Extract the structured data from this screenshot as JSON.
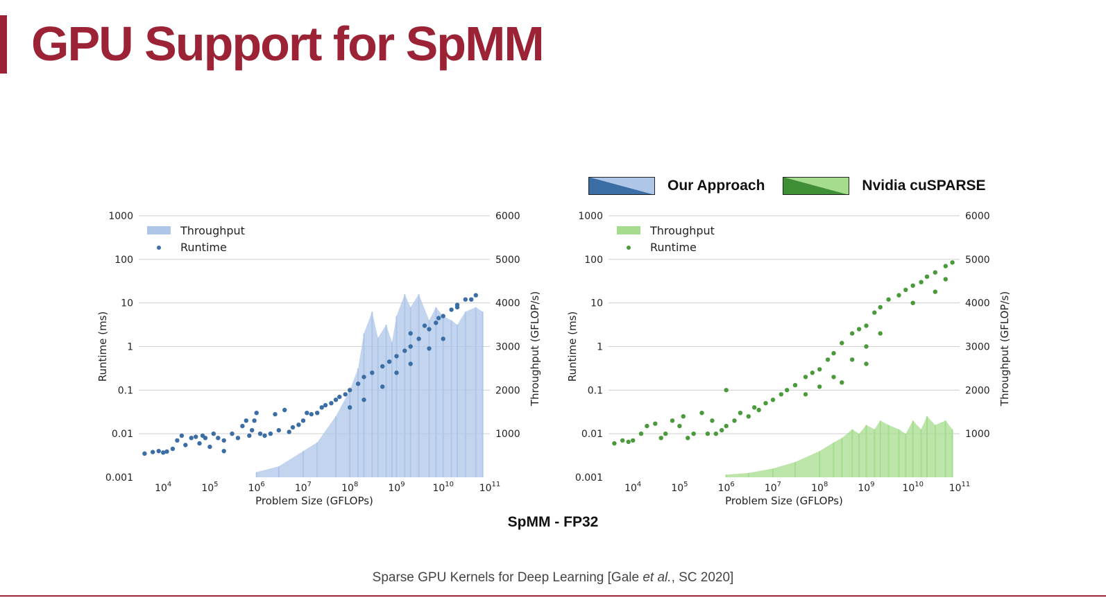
{
  "slide": {
    "title": "GPU Support for SpMM",
    "caption": "SpMM - FP32",
    "citation_pre": "Sparse GPU Kernels for Deep Learning [Gale ",
    "citation_italic": "et al.",
    "citation_post": ", SC 2020]"
  },
  "top_legend": [
    {
      "label": "Our Approach",
      "dark": "#3a6ea5",
      "light": "#aec6e8"
    },
    {
      "label": "Nvidia cuSPARSE",
      "dark": "#3f8f37",
      "light": "#a6dc8e"
    }
  ],
  "chart_data": [
    {
      "type": "scatter",
      "title": "",
      "xlabel": "Problem Size (GFLOPs)",
      "ylabel": "Runtime (ms)",
      "y2label": "Throughput (GFLOP/s)",
      "x_scale": "log",
      "y_scale": "log",
      "xlim": [
        3000.0,
        100000000000.0
      ],
      "ylim": [
        0.001,
        1000
      ],
      "y2lim": [
        0,
        6000
      ],
      "x_ticks": [
        "10",
        "10",
        "10",
        "10",
        "10",
        "10",
        "10",
        "10"
      ],
      "x_tick_exponents": [
        "4",
        "5",
        "6",
        "7",
        "8",
        "9",
        "10",
        "11"
      ],
      "y_ticks": [
        "0.001",
        "0.01",
        "0.1",
        "1",
        "10",
        "100",
        "1000"
      ],
      "y2_ticks": [
        "1000",
        "2000",
        "3000",
        "4000",
        "5000",
        "6000"
      ],
      "grid": true,
      "legend_position": "top-left",
      "colors": {
        "runtime": "#3a6ea5",
        "throughput": "#aec6e8"
      },
      "series": [
        {
          "name": "Runtime",
          "points": [
            [
              4000.0,
              0.0035
            ],
            [
              6000.0,
              0.0038
            ],
            [
              8000.0,
              0.004
            ],
            [
              10000.0,
              0.0037
            ],
            [
              12000.0,
              0.0039
            ],
            [
              16000.0,
              0.0045
            ],
            [
              20000.0,
              0.007
            ],
            [
              25000.0,
              0.009
            ],
            [
              30000.0,
              0.0055
            ],
            [
              40000.0,
              0.008
            ],
            [
              50000.0,
              0.0085
            ],
            [
              60000.0,
              0.006
            ],
            [
              70000.0,
              0.009
            ],
            [
              80000.0,
              0.008
            ],
            [
              100000.0,
              0.005
            ],
            [
              120000.0,
              0.01
            ],
            [
              150000.0,
              0.008
            ],
            [
              200000.0,
              0.004
            ],
            [
              200000.0,
              0.007
            ],
            [
              300000.0,
              0.01
            ],
            [
              400000.0,
              0.008
            ],
            [
              500000.0,
              0.015
            ],
            [
              600000.0,
              0.02
            ],
            [
              700000.0,
              0.009
            ],
            [
              800000.0,
              0.012
            ],
            [
              900000.0,
              0.02
            ],
            [
              1000000.0,
              0.03
            ],
            [
              1200000.0,
              0.01
            ],
            [
              1500000.0,
              0.009
            ],
            [
              2000000.0,
              0.01
            ],
            [
              2500000.0,
              0.028
            ],
            [
              3000000.0,
              0.012
            ],
            [
              4000000.0,
              0.035
            ],
            [
              5000000.0,
              0.011
            ],
            [
              6000000.0,
              0.014
            ],
            [
              8000000.0,
              0.016
            ],
            [
              10000000.0,
              0.02
            ],
            [
              12000000.0,
              0.03
            ],
            [
              15000000.0,
              0.028
            ],
            [
              20000000.0,
              0.03
            ],
            [
              25000000.0,
              0.04
            ],
            [
              30000000.0,
              0.045
            ],
            [
              40000000.0,
              0.05
            ],
            [
              50000000.0,
              0.06
            ],
            [
              60000000.0,
              0.07
            ],
            [
              80000000.0,
              0.08
            ],
            [
              100000000.0,
              0.1
            ],
            [
              150000000.0,
              0.14
            ],
            [
              200000000.0,
              0.2
            ],
            [
              300000000.0,
              0.25
            ],
            [
              500000000.0,
              0.35
            ],
            [
              700000000.0,
              0.45
            ],
            [
              1000000000.0,
              0.6
            ],
            [
              1500000000.0,
              0.8
            ],
            [
              2000000000.0,
              1.0
            ],
            [
              3000000000.0,
              1.5
            ],
            [
              5000000000.0,
              2.5
            ],
            [
              7000000000.0,
              3.5
            ],
            [
              10000000000.0,
              5.0
            ],
            [
              15000000000.0,
              7.0
            ],
            [
              20000000000.0,
              9.0
            ],
            [
              30000000000.0,
              12.0
            ],
            [
              50000000000.0,
              15.0
            ],
            [
              100000000.0,
              0.04
            ],
            [
              200000000.0,
              0.06
            ],
            [
              500000000.0,
              0.12
            ],
            [
              1000000000.0,
              0.25
            ],
            [
              2000000000.0,
              0.4
            ],
            [
              5000000000.0,
              0.9
            ],
            [
              10000000000.0,
              1.5
            ],
            [
              2000000000.0,
              2.0
            ],
            [
              4000000000.0,
              3.0
            ],
            [
              8000000000.0,
              4.5
            ],
            [
              20000000000.0,
              8.0
            ],
            [
              40000000000.0,
              12.0
            ]
          ]
        },
        {
          "name": "Throughput",
          "points": [
            [
              1000000.0,
              120
            ],
            [
              3000000.0,
              250
            ],
            [
              10000000.0,
              600
            ],
            [
              20000000.0,
              800
            ],
            [
              50000000.0,
              1400
            ],
            [
              100000000.0,
              2000
            ],
            [
              150000000.0,
              2500
            ],
            [
              200000000.0,
              3300
            ],
            [
              300000000.0,
              3800
            ],
            [
              400000000.0,
              3200
            ],
            [
              600000000.0,
              3500
            ],
            [
              800000000.0,
              3100
            ],
            [
              1000000000.0,
              3700
            ],
            [
              1500000000.0,
              4200
            ],
            [
              2000000000.0,
              3900
            ],
            [
              3000000000.0,
              4200
            ],
            [
              5000000000.0,
              3600
            ],
            [
              7000000000.0,
              3900
            ],
            [
              10000000000.0,
              3700
            ],
            [
              15000000000.0,
              3600
            ],
            [
              20000000000.0,
              3500
            ],
            [
              30000000000.0,
              3800
            ],
            [
              50000000000.0,
              3900
            ],
            [
              70000000000.0,
              3800
            ]
          ]
        }
      ]
    },
    {
      "type": "scatter",
      "title": "",
      "xlabel": "Problem Size (GFLOPs)",
      "ylabel": "Runtime (ms)",
      "y2label": "Throughput (GFLOP/s)",
      "x_scale": "log",
      "y_scale": "log",
      "xlim": [
        3000.0,
        100000000000.0
      ],
      "ylim": [
        0.001,
        1000
      ],
      "y2lim": [
        0,
        6000
      ],
      "x_ticks": [
        "10",
        "10",
        "10",
        "10",
        "10",
        "10",
        "10",
        "10"
      ],
      "x_tick_exponents": [
        "4",
        "5",
        "6",
        "7",
        "8",
        "9",
        "10",
        "11"
      ],
      "y_ticks": [
        "0.001",
        "0.01",
        "0.1",
        "1",
        "10",
        "100",
        "1000"
      ],
      "y2_ticks": [
        "1000",
        "2000",
        "3000",
        "4000",
        "5000",
        "6000"
      ],
      "grid": true,
      "legend_position": "top-left",
      "colors": {
        "runtime": "#4a9a3c",
        "throughput": "#a6dc8e"
      },
      "series": [
        {
          "name": "Runtime",
          "points": [
            [
              4000.0,
              0.006
            ],
            [
              6000.0,
              0.007
            ],
            [
              8000.0,
              0.0065
            ],
            [
              10000.0,
              0.007
            ],
            [
              15000.0,
              0.01
            ],
            [
              20000.0,
              0.015
            ],
            [
              30000.0,
              0.017
            ],
            [
              40000.0,
              0.008
            ],
            [
              50000.0,
              0.01
            ],
            [
              70000.0,
              0.02
            ],
            [
              100000.0,
              0.015
            ],
            [
              120000.0,
              0.025
            ],
            [
              150000.0,
              0.008
            ],
            [
              200000.0,
              0.01
            ],
            [
              300000.0,
              0.03
            ],
            [
              400000.0,
              0.01
            ],
            [
              500000.0,
              0.02
            ],
            [
              600000.0,
              0.01
            ],
            [
              800000.0,
              0.012
            ],
            [
              1000000.0,
              0.015
            ],
            [
              1000000.0,
              0.1
            ],
            [
              1500000.0,
              0.02
            ],
            [
              2000000.0,
              0.03
            ],
            [
              3000000.0,
              0.025
            ],
            [
              4000000.0,
              0.04
            ],
            [
              5000000.0,
              0.035
            ],
            [
              7000000.0,
              0.05
            ],
            [
              10000000.0,
              0.06
            ],
            [
              15000000.0,
              0.08
            ],
            [
              20000000.0,
              0.1
            ],
            [
              30000000.0,
              0.13
            ],
            [
              50000000.0,
              0.2
            ],
            [
              70000000.0,
              0.25
            ],
            [
              100000000.0,
              0.3
            ],
            [
              150000000.0,
              0.5
            ],
            [
              200000000.0,
              0.7
            ],
            [
              300000000.0,
              1.2
            ],
            [
              500000000.0,
              2.0
            ],
            [
              700000000.0,
              2.5
            ],
            [
              1000000000.0,
              3.0
            ],
            [
              1500000000.0,
              6.0
            ],
            [
              2000000000.0,
              8.0
            ],
            [
              3000000000.0,
              12.0
            ],
            [
              5000000000.0,
              15.0
            ],
            [
              7000000000.0,
              20.0
            ],
            [
              10000000000.0,
              25.0
            ],
            [
              15000000000.0,
              30.0
            ],
            [
              20000000000.0,
              40.0
            ],
            [
              30000000000.0,
              50.0
            ],
            [
              50000000000.0,
              70.0
            ],
            [
              70000000000.0,
              85.0
            ],
            [
              50000000.0,
              0.08
            ],
            [
              100000000.0,
              0.12
            ],
            [
              200000000.0,
              0.2
            ],
            [
              500000000.0,
              0.5
            ],
            [
              1000000000.0,
              1.0
            ],
            [
              2000000000.0,
              2.0
            ],
            [
              1000000000.0,
              0.4
            ],
            [
              300000000.0,
              0.15
            ],
            [
              10000000000.0,
              10.0
            ],
            [
              30000000000.0,
              18.0
            ],
            [
              50000000000.0,
              35.0
            ]
          ]
        },
        {
          "name": "Throughput",
          "points": [
            [
              1000000.0,
              60
            ],
            [
              3000000.0,
              100
            ],
            [
              10000000.0,
              200
            ],
            [
              30000000.0,
              350
            ],
            [
              100000000.0,
              600
            ],
            [
              200000000.0,
              800
            ],
            [
              300000000.0,
              900
            ],
            [
              500000000.0,
              1100
            ],
            [
              700000000.0,
              1000
            ],
            [
              1000000000.0,
              1200
            ],
            [
              1500000000.0,
              1100
            ],
            [
              2000000000.0,
              1300
            ],
            [
              3000000000.0,
              1200
            ],
            [
              5000000000.0,
              1100
            ],
            [
              7000000000.0,
              1000
            ],
            [
              10000000000.0,
              1300
            ],
            [
              15000000000.0,
              1100
            ],
            [
              20000000000.0,
              1400
            ],
            [
              30000000000.0,
              1200
            ],
            [
              50000000000.0,
              1300
            ],
            [
              70000000000.0,
              1100
            ]
          ]
        }
      ]
    }
  ]
}
